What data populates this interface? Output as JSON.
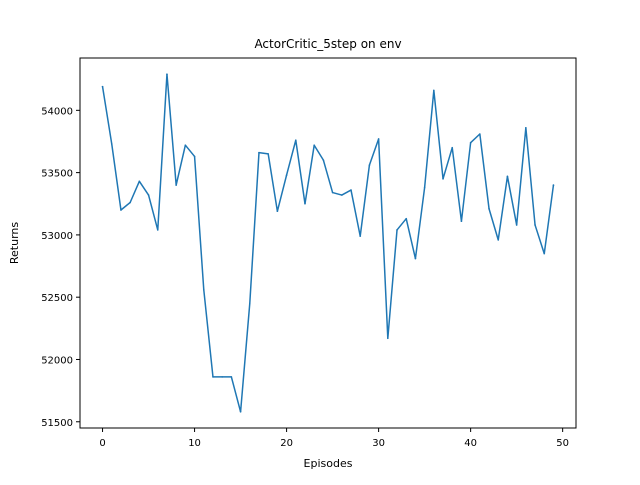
{
  "chart_data": {
    "type": "line",
    "title": "ActorCritic_5step on env",
    "xlabel": "Episodes",
    "ylabel": "Returns",
    "xlim": [
      -2.45,
      51.45
    ],
    "ylim": [
      51450,
      54420
    ],
    "xticks": [
      0,
      10,
      20,
      30,
      40,
      50
    ],
    "yticks": [
      51500,
      52000,
      52500,
      53000,
      53500,
      54000
    ],
    "grid": false,
    "legend": "none",
    "line_color": "#1f77b4",
    "series": [
      {
        "x": [
          0,
          1,
          2,
          3,
          4,
          5,
          6,
          7,
          8,
          9,
          10,
          11,
          12,
          13,
          14,
          15,
          16,
          17,
          18,
          19,
          20,
          21,
          22,
          23,
          24,
          25,
          26,
          27,
          28,
          29,
          30,
          31,
          32,
          33,
          34,
          35,
          36,
          37,
          38,
          39,
          40,
          41,
          42,
          43,
          44,
          45,
          46,
          47,
          48,
          49
        ],
        "values": [
          54190,
          53730,
          53200,
          53260,
          53430,
          53320,
          53040,
          54290,
          53400,
          53720,
          53630,
          52560,
          51860,
          51860,
          51860,
          51580,
          52450,
          53660,
          53650,
          53190,
          53480,
          53760,
          53250,
          53720,
          53600,
          53340,
          53320,
          53360,
          52990,
          53560,
          53770,
          52170,
          53040,
          53130,
          52810,
          53380,
          54160,
          53450,
          53700,
          53110,
          53740,
          53810,
          53210,
          52960,
          53470,
          53080,
          53860,
          53080,
          52850,
          53400
        ]
      }
    ]
  }
}
